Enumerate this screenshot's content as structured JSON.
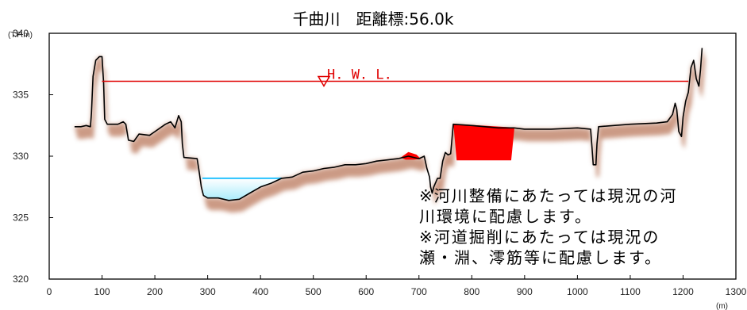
{
  "chart_data": {
    "type": "area",
    "title": "千曲川　距離標:56.0k",
    "ylabel": "(T.P.m)",
    "xlabel": "(m)",
    "xlim": [
      0,
      1300
    ],
    "ylim": [
      320,
      340
    ],
    "x_ticks": [
      0,
      100,
      200,
      300,
      400,
      500,
      600,
      700,
      800,
      900,
      1000,
      1100,
      1200,
      1300
    ],
    "y_ticks": [
      320,
      325,
      330,
      335,
      340
    ],
    "hwl": {
      "label": "H. W. L.",
      "y": 336.1,
      "x_start": 100,
      "x_end": 1210
    },
    "water_level": {
      "y": 328.2,
      "x_start": 290,
      "x_end": 440
    },
    "ground_profile": [
      [
        48,
        332.4
      ],
      [
        60,
        332.4
      ],
      [
        70,
        332.5
      ],
      [
        78,
        332.4
      ],
      [
        80,
        333.5
      ],
      [
        83,
        336.5
      ],
      [
        88,
        337.8
      ],
      [
        95,
        338.1
      ],
      [
        100,
        338.1
      ],
      [
        103,
        336.0
      ],
      [
        105,
        333.0
      ],
      [
        110,
        332.6
      ],
      [
        130,
        332.6
      ],
      [
        140,
        332.8
      ],
      [
        145,
        332.6
      ],
      [
        150,
        331.3
      ],
      [
        160,
        331.2
      ],
      [
        170,
        331.8
      ],
      [
        190,
        331.7
      ],
      [
        200,
        332.0
      ],
      [
        220,
        332.6
      ],
      [
        230,
        332.8
      ],
      [
        238,
        332.3
      ],
      [
        245,
        333.3
      ],
      [
        250,
        332.8
      ],
      [
        252,
        331.0
      ],
      [
        255,
        329.9
      ],
      [
        280,
        329.8
      ],
      [
        283,
        329.0
      ],
      [
        288,
        327.5
      ],
      [
        292,
        326.8
      ],
      [
        300,
        326.6
      ],
      [
        320,
        326.6
      ],
      [
        340,
        326.4
      ],
      [
        360,
        326.5
      ],
      [
        380,
        327.0
      ],
      [
        400,
        327.5
      ],
      [
        420,
        327.8
      ],
      [
        440,
        328.2
      ],
      [
        460,
        328.3
      ],
      [
        480,
        328.7
      ],
      [
        500,
        328.8
      ],
      [
        520,
        329.0
      ],
      [
        540,
        329.1
      ],
      [
        560,
        329.3
      ],
      [
        580,
        329.3
      ],
      [
        600,
        329.4
      ],
      [
        620,
        329.6
      ],
      [
        640,
        329.7
      ],
      [
        660,
        329.8
      ],
      [
        680,
        330.0
      ],
      [
        700,
        329.8
      ],
      [
        710,
        330.0
      ],
      [
        715,
        329.0
      ],
      [
        720,
        328.3
      ],
      [
        722,
        327.5
      ],
      [
        725,
        327.0
      ],
      [
        728,
        327.5
      ],
      [
        735,
        328.2
      ],
      [
        740,
        328.2
      ],
      [
        745,
        329.6
      ],
      [
        750,
        330.3
      ],
      [
        755,
        330.1
      ],
      [
        760,
        330.2
      ],
      [
        765,
        332.6
      ],
      [
        800,
        332.5
      ],
      [
        850,
        332.3
      ],
      [
        880,
        332.3
      ],
      [
        900,
        332.2
      ],
      [
        950,
        332.2
      ],
      [
        1000,
        332.3
      ],
      [
        1025,
        332.2
      ],
      [
        1028,
        330.5
      ],
      [
        1030,
        329.3
      ],
      [
        1035,
        329.3
      ],
      [
        1037,
        331.0
      ],
      [
        1040,
        332.4
      ],
      [
        1100,
        332.6
      ],
      [
        1150,
        332.7
      ],
      [
        1170,
        332.8
      ],
      [
        1180,
        333.4
      ],
      [
        1185,
        334.3
      ],
      [
        1188,
        333.8
      ],
      [
        1192,
        332.0
      ],
      [
        1197,
        331.6
      ],
      [
        1200,
        333.2
      ],
      [
        1205,
        334.5
      ],
      [
        1210,
        335.2
      ],
      [
        1215,
        337.2
      ],
      [
        1220,
        337.8
      ],
      [
        1225,
        336.3
      ],
      [
        1230,
        335.7
      ],
      [
        1233,
        337.0
      ],
      [
        1236,
        338.8
      ]
    ],
    "excavation_areas": [
      [
        [
          667,
          329.9
        ],
        [
          680,
          330.3
        ],
        [
          695,
          330.1
        ],
        [
          702,
          329.8
        ],
        [
          690,
          329.75
        ],
        [
          675,
          329.75
        ]
      ],
      [
        [
          766,
          332.6
        ],
        [
          880,
          332.3
        ],
        [
          874,
          329.7
        ],
        [
          772,
          329.7
        ]
      ]
    ],
    "colors": {
      "hwl": "#e00000",
      "ground_line": "#000000",
      "embankment": "#c9957f",
      "excavation": "#ff0000",
      "water_fill": "#c8f4ff",
      "water_line": "#27c3ff",
      "grid": "#000000"
    }
  },
  "note": {
    "lines": [
      "※河川整備にあたっては現況の河",
      "川環境に配慮します。",
      "※河道掘削にあたっては現況の",
      "瀬・淵、澪筋等に配慮します。"
    ]
  }
}
